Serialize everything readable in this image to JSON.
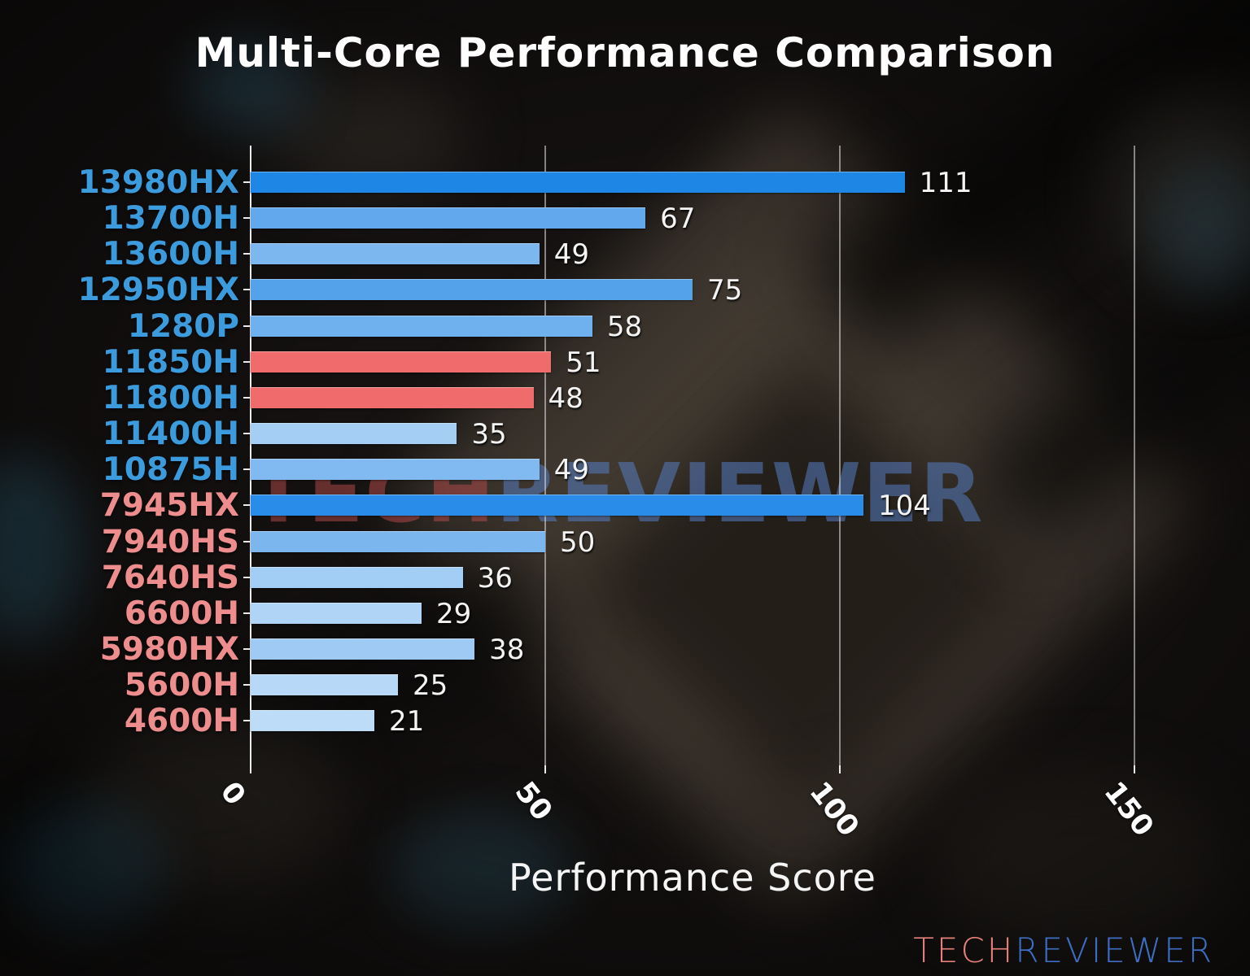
{
  "title": "Multi-Core Performance Comparison",
  "xlabel": "Performance Score",
  "watermark": {
    "tech": "TECH",
    "reviewer": "REVIEWER"
  },
  "logo": {
    "tech": "TECH",
    "reviewer": "REVIEWER"
  },
  "chart_data": {
    "type": "bar",
    "orientation": "horizontal",
    "title": "Multi-Core Performance Comparison",
    "xlabel": "Performance Score",
    "xlim": [
      0,
      150
    ],
    "xticks": [
      0,
      50,
      100,
      150
    ],
    "grid": true,
    "legend": "none",
    "value_labels_shown": true,
    "categories": [
      "13980HX",
      "13700H",
      "13600H",
      "12950HX",
      "1280P",
      "11850H",
      "11800H",
      "11400H",
      "10875H",
      "7945HX",
      "7940HS",
      "7640HS",
      "6600H",
      "5980HX",
      "5600H",
      "4600H"
    ],
    "values": [
      111,
      67,
      49,
      75,
      58,
      51,
      48,
      35,
      49,
      104,
      50,
      36,
      29,
      38,
      25,
      21
    ],
    "bar_colors": [
      "#1e87e6",
      "#61a9ec",
      "#7cb7ef",
      "#54a2ea",
      "#6fb0ee",
      "#f06c6c",
      "#f06c6c",
      "#a4cef4",
      "#80baf0",
      "#2a8ce9",
      "#7bb6ef",
      "#a2cdf4",
      "#afd4f6",
      "#9ecaf3",
      "#b7d8f7",
      "#bddcf8"
    ],
    "label_groups": [
      "intel",
      "intel",
      "intel",
      "intel",
      "intel",
      "intel",
      "intel",
      "intel",
      "intel",
      "amd",
      "amd",
      "amd",
      "amd",
      "amd",
      "amd",
      "amd"
    ],
    "label_colors": {
      "intel": "#3c9bdc",
      "amd": "#ee8d8e"
    },
    "highlight_color": "#f06c6c",
    "axis_text_color": "#ffffff"
  }
}
